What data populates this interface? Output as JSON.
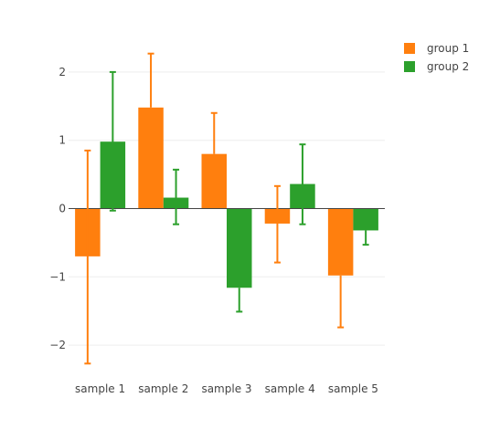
{
  "chart_data": {
    "type": "bar",
    "categories": [
      "sample 1",
      "sample 2",
      "sample 3",
      "sample 4",
      "sample 5"
    ],
    "series": [
      {
        "name": "group 1",
        "color": "#ff7f0e",
        "values": [
          -0.7,
          1.48,
          0.8,
          -0.22,
          -0.98
        ],
        "error_upper": [
          0.85,
          2.27,
          1.4,
          0.33,
          -0.98
        ],
        "error_lower": [
          -2.27,
          1.48,
          0.8,
          -0.79,
          -1.74
        ]
      },
      {
        "name": "group 2",
        "color": "#2ca02c",
        "values": [
          0.98,
          0.16,
          -1.16,
          0.36,
          -0.32
        ],
        "error_upper": [
          2.0,
          0.57,
          -1.16,
          0.94,
          -0.32
        ],
        "error_lower": [
          -0.03,
          -0.23,
          -1.51,
          -0.23,
          -0.53
        ]
      }
    ],
    "y_ticks": [
      2,
      1,
      0,
      -1,
      -2
    ],
    "y_tick_labels": [
      "2",
      "1",
      "0",
      "−1",
      "−2"
    ],
    "ylim": [
      -2.4,
      2.4
    ],
    "grid": true,
    "legend_position": "top-right",
    "title": "",
    "xlabel": "",
    "ylabel": ""
  }
}
